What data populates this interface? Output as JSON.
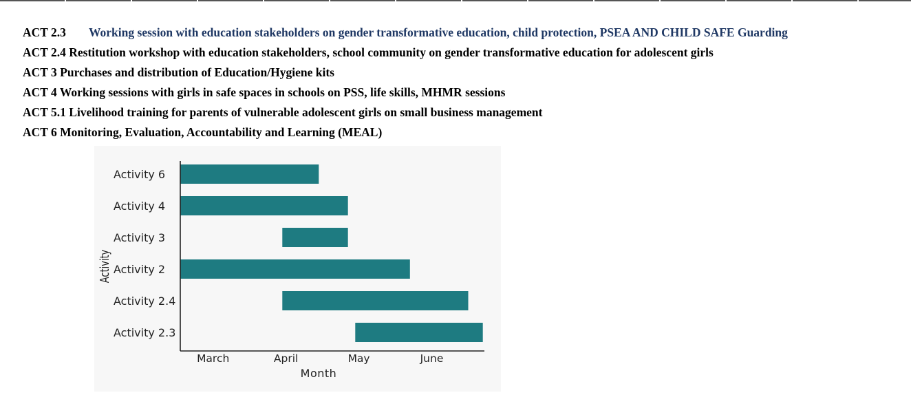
{
  "activities": [
    {
      "code": "ACT 2.3",
      "description": "Working session with education stakeholders on gender transformative education, child protection, PSEA AND CHILD SAFE Guarding"
    },
    {
      "code": "ACT 2.4",
      "description": "Restitution workshop with education stakeholders, school community on gender transformative education for adolescent girls"
    },
    {
      "code": "ACT 3",
      "description": "Purchases and distribution of Education/Hygiene kits"
    },
    {
      "code": "ACT 4",
      "description": "Working sessions with girls in safe spaces in schools on PSS, life skills, MHMR sessions"
    },
    {
      "code": "ACT 5.1",
      "description": "Livelihood training for parents of vulnerable adolescent girls on small business management"
    },
    {
      "code": "ACT 6",
      "description": "Monitoring, Evaluation, Accountability and Learning (MEAL)"
    }
  ],
  "chart_data": {
    "type": "bar",
    "orientation": "horizontal-gantt",
    "title": "",
    "xlabel": "Month",
    "ylabel": "Activity",
    "x_ticks": [
      "March",
      "April",
      "May",
      "June"
    ],
    "x_unit": "month index (March = 3)",
    "xlim": [
      2.55,
      6.75
    ],
    "categories": [
      "Activity 6",
      "Activity 4",
      "Activity 3",
      "Activity 2",
      "Activity 2.4",
      "Activity 2.3"
    ],
    "series": [
      {
        "start": [
          2.55,
          2.55,
          3.95,
          2.55,
          3.95,
          4.95
        ],
        "end": [
          4.45,
          4.85,
          4.85,
          5.7,
          6.5,
          6.7
        ]
      }
    ],
    "bar_color": "#1e7b81",
    "grid": false,
    "legend": "none"
  }
}
